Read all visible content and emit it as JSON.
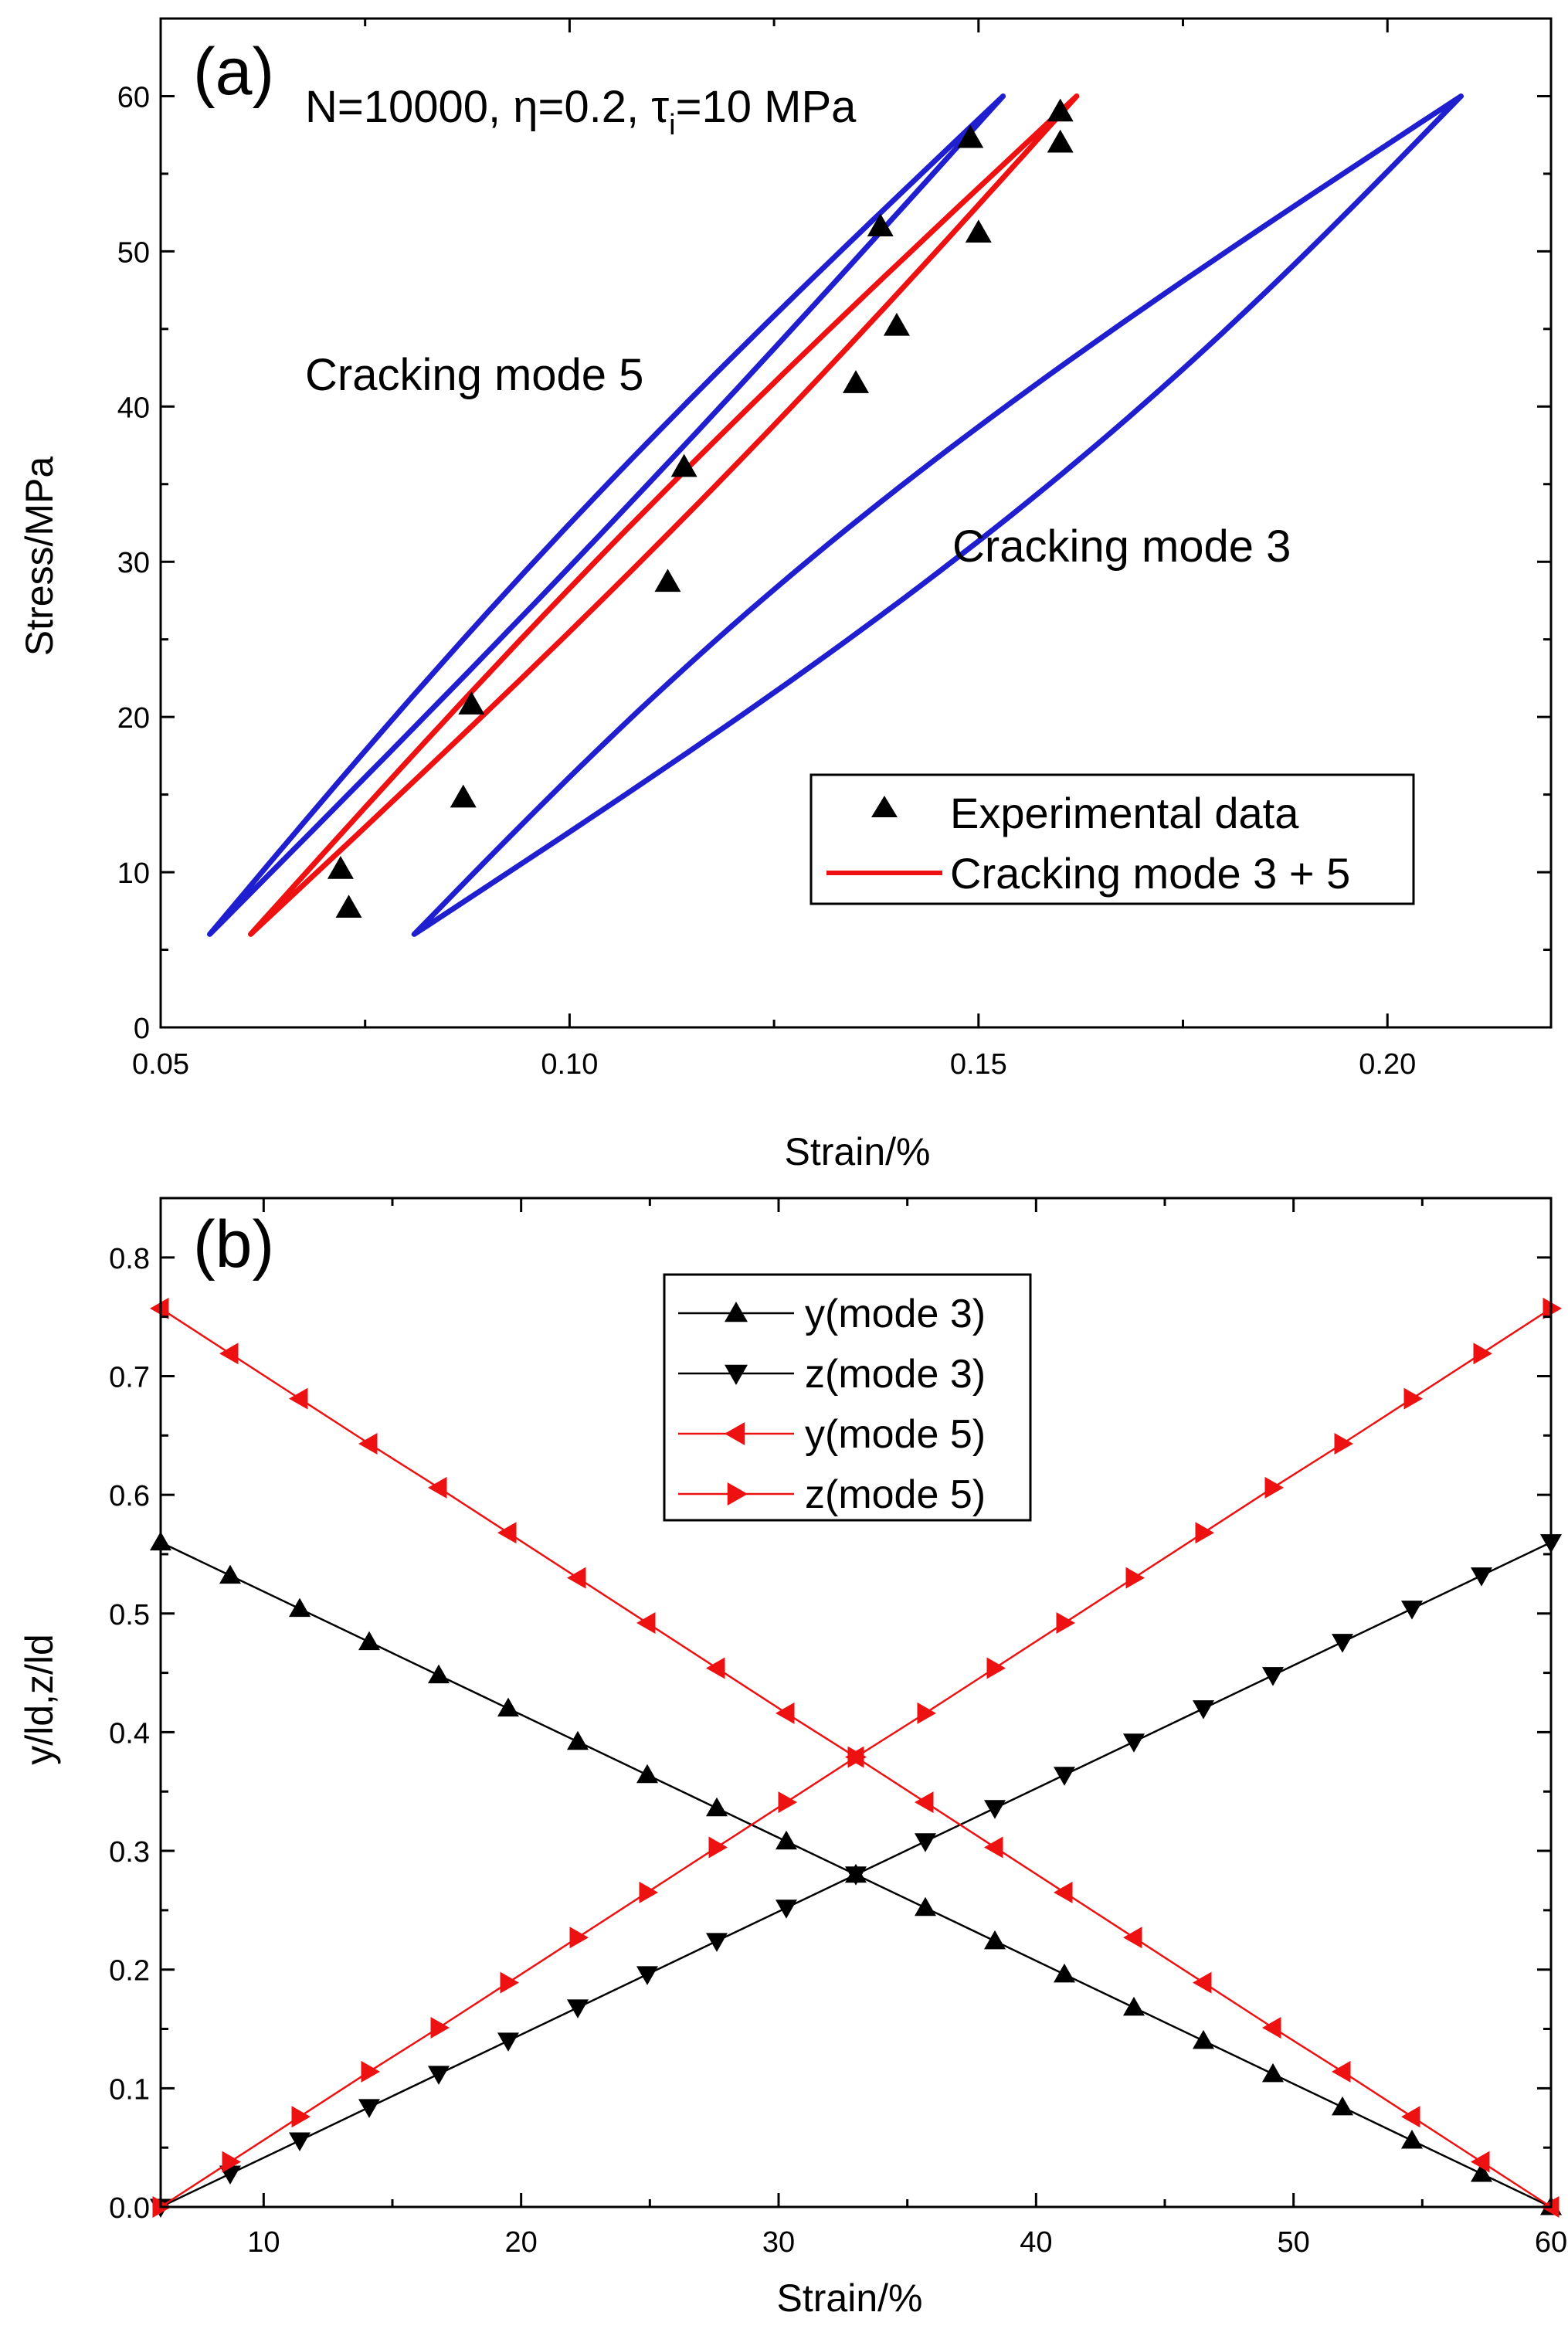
{
  "chart_data": [
    {
      "type": "line",
      "panel_label": "(a)",
      "title": "N=10000, η=0.2, τ",
      "title_subscript": "i",
      "title_suffix": "=10 MPa",
      "xlabel": "Strain/%",
      "ylabel": "Stress/MPa",
      "xlim": [
        0.05,
        0.22
      ],
      "ylim": [
        0,
        65
      ],
      "xticks": [
        0.05,
        0.1,
        0.15,
        0.2
      ],
      "xtick_labels": [
        "0.05",
        "0.10",
        "0.15",
        "0.20"
      ],
      "yticks": [
        0,
        10,
        20,
        30,
        40,
        50,
        60
      ],
      "ytick_labels": [
        "0",
        "10",
        "20",
        "30",
        "40",
        "50",
        "60"
      ],
      "annotations": [
        {
          "text": "Cracking mode 5",
          "near": [
            0.075,
            41.5
          ]
        },
        {
          "text": "Cracking mode 3",
          "near": [
            0.147,
            31.5
          ]
        }
      ],
      "loops": [
        {
          "name": "Cracking mode 5",
          "color": "#1f1fd0",
          "start": [
            0.056,
            6
          ],
          "end": [
            0.153,
            60
          ],
          "bulge_upper": 0.0035,
          "bulge_lower": 0.0015
        },
        {
          "name": "Cracking mode 3 + 5",
          "color": "#ee1111",
          "start": [
            0.061,
            6
          ],
          "end": [
            0.162,
            60
          ],
          "bulge_upper": 0.0028,
          "bulge_lower": 0.0028
        },
        {
          "name": "Cracking mode 3",
          "color": "#1f1fd0",
          "start": [
            0.081,
            6
          ],
          "end": [
            0.209,
            60
          ],
          "bulge_upper": 0.009,
          "bulge_lower": 0.009
        }
      ],
      "experimental": {
        "name": "Experimental data",
        "x": [
          0.072,
          0.073,
          0.087,
          0.088,
          0.112,
          0.114,
          0.135,
          0.138,
          0.14,
          0.149,
          0.15,
          0.16,
          0.16
        ],
        "y": [
          10.2,
          7.7,
          14.8,
          20.8,
          28.7,
          36.1,
          41.5,
          51.6,
          45.2,
          57.3,
          51.2,
          59.0,
          57.0
        ]
      },
      "legend": [
        {
          "label": "Experimental data",
          "marker": "triangle-up",
          "color": "#000000"
        },
        {
          "label": "Cracking mode 3 + 5",
          "marker": "line",
          "color": "#ee1111"
        }
      ]
    },
    {
      "type": "line",
      "panel_label": "(b)",
      "xlabel": "Strain/%",
      "ylabel": "y/ld,z/ld",
      "xlim": [
        6,
        60
      ],
      "ylim": [
        0,
        0.85
      ],
      "xticks": [
        10,
        20,
        30,
        40,
        50,
        60
      ],
      "xtick_labels": [
        "10",
        "20",
        "30",
        "40",
        "50",
        "60"
      ],
      "yticks": [
        0.0,
        0.1,
        0.2,
        0.3,
        0.4,
        0.5,
        0.6,
        0.7,
        0.8
      ],
      "ytick_labels": [
        "0.0",
        "0.1",
        "0.2",
        "0.3",
        "0.4",
        "0.5",
        "0.6",
        "0.7",
        "0.8"
      ],
      "x": [
        6,
        8.7,
        11.4,
        14.1,
        16.8,
        19.5,
        22.2,
        24.9,
        27.6,
        30.3,
        33,
        35.7,
        38.4,
        41.1,
        43.8,
        46.5,
        49.2,
        51.9,
        54.6,
        57.3,
        60
      ],
      "series": [
        {
          "name": "y(mode 3)",
          "color": "#000000",
          "marker": "triangle-up",
          "values": [
            0.56,
            0.532,
            0.504,
            0.476,
            0.448,
            0.42,
            0.392,
            0.364,
            0.336,
            0.308,
            0.28,
            0.252,
            0.224,
            0.196,
            0.168,
            0.14,
            0.112,
            0.084,
            0.056,
            0.028,
            0.0
          ]
        },
        {
          "name": "z(mode 3)",
          "color": "#000000",
          "marker": "triangle-down",
          "values": [
            0.0,
            0.028,
            0.056,
            0.084,
            0.112,
            0.14,
            0.168,
            0.196,
            0.224,
            0.252,
            0.28,
            0.308,
            0.336,
            0.364,
            0.392,
            0.42,
            0.448,
            0.476,
            0.504,
            0.532,
            0.56
          ]
        },
        {
          "name": "y(mode 5)",
          "color": "#ee1111",
          "marker": "triangle-left",
          "values": [
            0.757,
            0.719,
            0.681,
            0.643,
            0.606,
            0.568,
            0.53,
            0.492,
            0.454,
            0.416,
            0.379,
            0.341,
            0.303,
            0.265,
            0.227,
            0.189,
            0.151,
            0.114,
            0.076,
            0.038,
            0.0
          ]
        },
        {
          "name": "z(mode 5)",
          "color": "#ee1111",
          "marker": "triangle-right",
          "values": [
            0.0,
            0.038,
            0.076,
            0.114,
            0.151,
            0.189,
            0.227,
            0.265,
            0.303,
            0.341,
            0.379,
            0.416,
            0.454,
            0.492,
            0.53,
            0.568,
            0.606,
            0.643,
            0.681,
            0.719,
            0.757
          ]
        }
      ]
    }
  ]
}
